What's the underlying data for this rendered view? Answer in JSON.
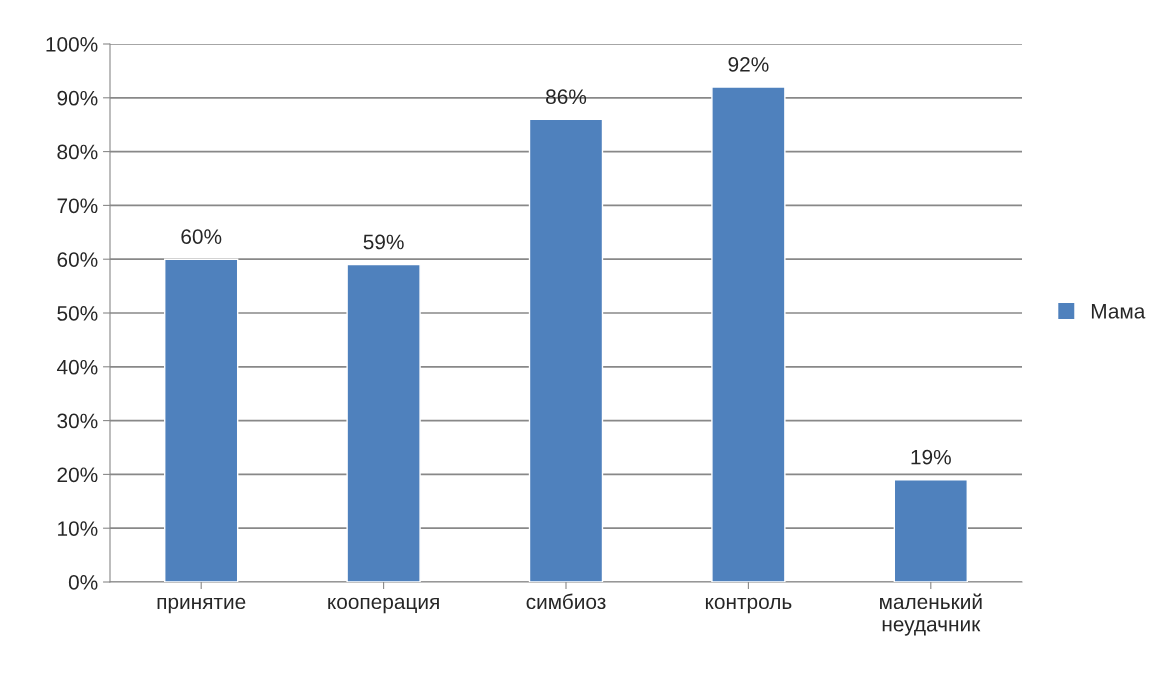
{
  "chart_data": {
    "type": "bar",
    "categories": [
      "принятие",
      "кооперация",
      "симбиоз",
      "контроль",
      "маленький\nнеудачник"
    ],
    "series": [
      {
        "name": "Мама",
        "color": "#4f81bd",
        "values": [
          60,
          59,
          86,
          92,
          19
        ],
        "value_labels": [
          "60%",
          "59%",
          "86%",
          "92%",
          "19%"
        ]
      }
    ],
    "ylim": [
      0,
      100
    ],
    "yticks": [
      {
        "value": 0,
        "label": "0%"
      },
      {
        "value": 10,
        "label": "10%"
      },
      {
        "value": 20,
        "label": "20%"
      },
      {
        "value": 30,
        "label": "30%"
      },
      {
        "value": 40,
        "label": "40%"
      },
      {
        "value": 50,
        "label": "50%"
      },
      {
        "value": 60,
        "label": "60%"
      },
      {
        "value": 70,
        "label": "70%"
      },
      {
        "value": 80,
        "label": "80%"
      },
      {
        "value": 90,
        "label": "90%"
      },
      {
        "value": 100,
        "label": "100%"
      }
    ],
    "grid": "y",
    "legend": "right"
  }
}
